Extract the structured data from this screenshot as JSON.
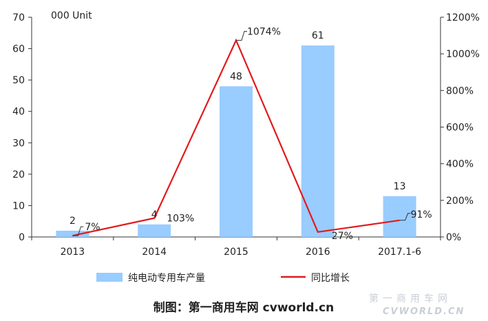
{
  "chart_data": {
    "type": "bar",
    "categories": [
      "2013",
      "2014",
      "2015",
      "2016",
      "2017.1-6"
    ],
    "unit_label": "000 Unit",
    "series": [
      {
        "name": "纯电动专用车产量",
        "type": "bar",
        "axis": "left",
        "values": [
          2,
          4,
          48,
          61,
          13
        ],
        "value_labels": [
          "2",
          "4",
          "48",
          "61",
          "13"
        ],
        "color": "#99CCFF"
      },
      {
        "name": "同比增长",
        "type": "line",
        "axis": "right",
        "values": [
          7,
          103,
          1074,
          27,
          91
        ],
        "value_labels": [
          "7%",
          "103%",
          "1074%",
          "27%",
          "91%"
        ],
        "color": "#E3191B"
      }
    ],
    "y_left": {
      "min": 0,
      "max": 70,
      "ticks": [
        0,
        10,
        20,
        30,
        40,
        50,
        60,
        70
      ]
    },
    "y_right": {
      "min": 0,
      "max": 1200,
      "ticks": [
        "0%",
        "200%",
        "400%",
        "600%",
        "800%",
        "1000%",
        "1200%"
      ]
    },
    "legend_position": "bottom",
    "grid": false
  },
  "footer": {
    "credit": "制图：第一商用车网 cvworld.cn",
    "watermark_cn": "第一商用车网",
    "watermark_en": "CVWORLD.CN"
  }
}
